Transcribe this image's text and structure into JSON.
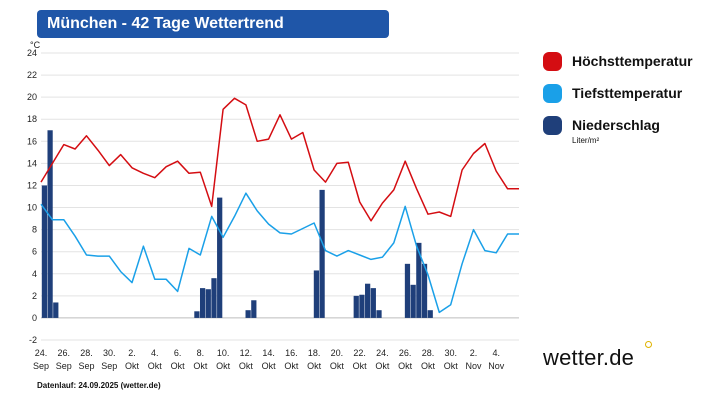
{
  "title": "München - 42 Tage Wettertrend",
  "legend": [
    {
      "label": "Höchsttemperatur",
      "color": "#d40d12"
    },
    {
      "label": "Tiefsttemperatur",
      "color": "#1aa0e8"
    },
    {
      "label": "Niederschlag",
      "color": "#1f3f7a"
    }
  ],
  "legend_unit": "Liter/m²",
  "brand": "wetter.de",
  "footer": "Datenlauf: 24.09.2025 (wetter.de)",
  "chart_data": {
    "type": "line",
    "ylabel": "°C",
    "ylim": [
      -2,
      24
    ],
    "yticks": [
      -2,
      0,
      2,
      4,
      6,
      8,
      10,
      12,
      14,
      16,
      18,
      20,
      22,
      24
    ],
    "grid": true,
    "xlim": [
      0,
      42
    ],
    "x_ticks": [
      {
        "day": "24.",
        "month": "Sep"
      },
      {
        "day": "26.",
        "month": "Sep"
      },
      {
        "day": "28.",
        "month": "Sep"
      },
      {
        "day": "30.",
        "month": "Sep"
      },
      {
        "day": "2.",
        "month": "Okt"
      },
      {
        "day": "4.",
        "month": "Okt"
      },
      {
        "day": "6.",
        "month": "Okt"
      },
      {
        "day": "8.",
        "month": "Okt"
      },
      {
        "day": "10.",
        "month": "Okt"
      },
      {
        "day": "12.",
        "month": "Okt"
      },
      {
        "day": "14.",
        "month": "Okt"
      },
      {
        "day": "16.",
        "month": "Okt"
      },
      {
        "day": "18.",
        "month": "Okt"
      },
      {
        "day": "20.",
        "month": "Okt"
      },
      {
        "day": "22.",
        "month": "Okt"
      },
      {
        "day": "24.",
        "month": "Okt"
      },
      {
        "day": "26.",
        "month": "Okt"
      },
      {
        "day": "28.",
        "month": "Okt"
      },
      {
        "day": "30.",
        "month": "Okt"
      },
      {
        "day": "2.",
        "month": "Nov"
      },
      {
        "day": "4.",
        "month": "Nov"
      }
    ],
    "series": [
      {
        "name": "Höchsttemperatur",
        "type": "line",
        "color": "#d40d12",
        "x": [
          0,
          1,
          2,
          3,
          4,
          5,
          6,
          7,
          8,
          9,
          10,
          11,
          12,
          13,
          14,
          15,
          16,
          17,
          18,
          19,
          20,
          21,
          22,
          23,
          24,
          25,
          26,
          27,
          28,
          29,
          30,
          31,
          32,
          33,
          34,
          35,
          36,
          37,
          38,
          39,
          40,
          41,
          42
        ],
        "values": [
          12.3,
          14.0,
          15.7,
          15.3,
          16.5,
          15.2,
          13.8,
          14.8,
          13.6,
          13.1,
          12.7,
          13.7,
          14.2,
          13.1,
          13.2,
          10.1,
          18.9,
          19.9,
          19.3,
          16.0,
          16.2,
          18.4,
          16.2,
          16.8,
          13.4,
          12.3,
          14.0,
          14.1,
          10.5,
          8.8,
          10.4,
          11.6,
          14.2,
          11.7,
          9.4,
          9.6,
          9.2,
          13.4,
          14.9,
          15.8,
          13.3,
          11.7,
          11.7
        ]
      },
      {
        "name": "Tiefsttemperatur",
        "type": "line",
        "color": "#1aa0e8",
        "x": [
          0,
          1,
          2,
          3,
          4,
          5,
          6,
          7,
          8,
          9,
          10,
          11,
          12,
          13,
          14,
          15,
          16,
          17,
          18,
          19,
          20,
          21,
          22,
          23,
          24,
          25,
          26,
          27,
          28,
          29,
          30,
          31,
          32,
          33,
          34,
          35,
          36,
          37,
          38,
          39,
          40,
          41,
          42
        ],
        "values": [
          10.3,
          8.9,
          8.9,
          7.4,
          5.7,
          5.6,
          5.6,
          4.2,
          3.2,
          6.5,
          3.5,
          3.5,
          2.4,
          6.3,
          5.7,
          9.2,
          7.3,
          9.2,
          11.3,
          9.7,
          8.5,
          7.7,
          7.6,
          8.1,
          8.6,
          6.1,
          5.6,
          6.1,
          5.7,
          5.3,
          5.5,
          6.8,
          10.1,
          6.5,
          3.9,
          0.5,
          1.2,
          4.9,
          8.0,
          6.1,
          5.9,
          7.6,
          7.6
        ]
      },
      {
        "name": "Niederschlag",
        "type": "bar",
        "color": "#1f3f7a",
        "x": [
          0.3,
          0.8,
          1.3,
          13.7,
          14.2,
          14.7,
          15.2,
          15.7,
          18.2,
          18.7,
          24.2,
          24.7,
          27.7,
          28.2,
          28.7,
          29.2,
          29.7,
          32.2,
          32.7,
          33.2,
          33.7,
          34.2
        ],
        "values": [
          12.0,
          17.0,
          1.4,
          0.6,
          2.7,
          2.6,
          3.6,
          10.9,
          0.7,
          1.6,
          4.3,
          11.6,
          2.0,
          2.1,
          3.1,
          2.7,
          0.7,
          4.9,
          3.0,
          6.8,
          4.9,
          0.7
        ]
      }
    ]
  }
}
